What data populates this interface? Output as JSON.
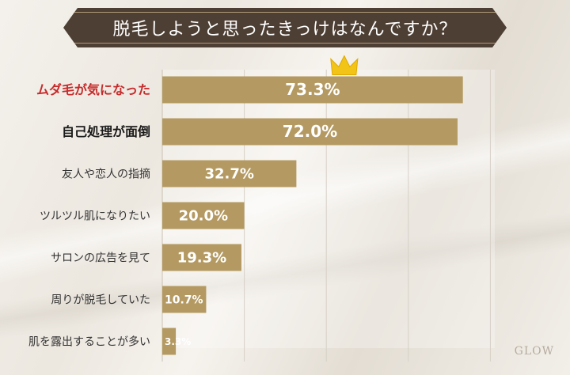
{
  "title": "脱毛しようと思ったきっけはなんですか？",
  "logo": "GLOW",
  "chart_data": {
    "type": "bar",
    "orientation": "horizontal",
    "categories": [
      "ムダ毛が気になった",
      "自己処理が面倒",
      "友人や恋人の指摘",
      "ツルツル肌になりたい",
      "サロンの広告を見て",
      "周りが脱毛していた",
      "肌を露出することが多い"
    ],
    "values": [
      73.3,
      72.0,
      32.7,
      20.0,
      19.3,
      10.7,
      3.3
    ],
    "value_labels": [
      "73.3%",
      "72.0%",
      "32.7%",
      "20.0%",
      "19.3%",
      "10.7%",
      "3.3%"
    ],
    "xlim": [
      0,
      100
    ],
    "grid": true,
    "colors": {
      "bar": "#b49a62",
      "highlight_label": "#c62b2b",
      "bold_label": "#1a1a1a",
      "normal_label": "#333333",
      "crown": "#f2c418"
    },
    "highlight_index": 0,
    "bold_indices": [
      0,
      1
    ],
    "crown_index": 0
  }
}
